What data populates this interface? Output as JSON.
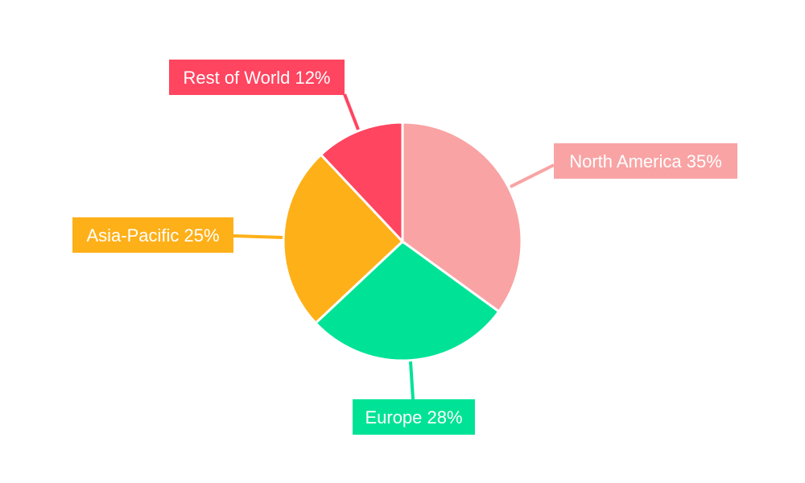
{
  "chart_data": {
    "type": "pie",
    "title": "",
    "start_angle": "top",
    "direction": "clockwise",
    "legend": "none",
    "series": [
      {
        "name": "North America",
        "value": 35,
        "label": "North America 35%",
        "color": "#F9A3A4"
      },
      {
        "name": "Europe",
        "value": 28,
        "label": "Europe 28%",
        "color": "#00E396"
      },
      {
        "name": "Asia-Pacific",
        "value": 25,
        "label": "Asia-Pacific 25%",
        "color": "#FEB019"
      },
      {
        "name": "Rest of World",
        "value": 12,
        "label": "Rest of World 12%",
        "color": "#FF4560"
      }
    ]
  }
}
